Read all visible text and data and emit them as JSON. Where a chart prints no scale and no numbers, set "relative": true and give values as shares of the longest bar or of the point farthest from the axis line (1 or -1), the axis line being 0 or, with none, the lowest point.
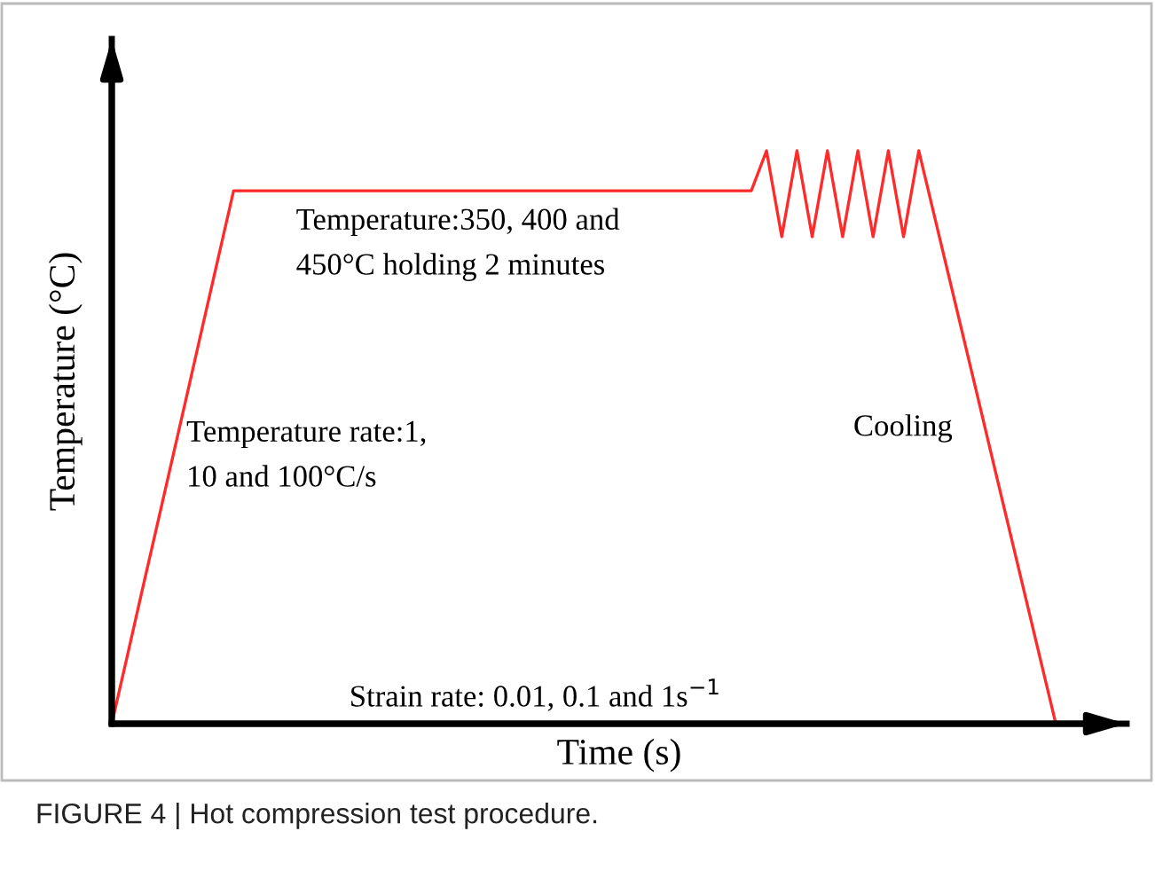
{
  "chart_data": {
    "type": "line",
    "relative": true,
    "xlabel": "Time (s)",
    "ylabel": "Temperature (°C)",
    "categories": [
      null,
      null,
      null,
      null,
      null,
      null,
      null,
      null,
      null,
      null,
      null,
      null,
      null,
      null,
      null,
      null,
      null,
      null,
      null,
      null,
      null,
      null,
      null,
      null,
      null,
      null,
      null,
      null,
      null,
      null,
      null,
      null,
      null,
      null,
      null,
      null,
      null,
      null,
      null,
      null,
      null,
      null,
      null,
      null,
      null,
      null,
      null,
      null,
      null,
      null,
      null,
      null,
      null,
      null,
      null,
      null,
      null,
      null,
      null,
      null,
      null,
      null,
      null
    ],
    "tick_labels": false,
    "marker": "none",
    "line_style": "solid",
    "series": [
      {
        "color": "#ff2a2a",
        "values": [
          0,
          0.116,
          0.233,
          0.349,
          0.465,
          0.581,
          0.698,
          0.814,
          0.93,
          0.93,
          0.93,
          0.93,
          0.93,
          0.93,
          0.93,
          0.93,
          0.93,
          0.93,
          0.93,
          0.93,
          0.93,
          0.93,
          0.93,
          0.93,
          0.93,
          0.93,
          0.93,
          0.93,
          0.93,
          0.93,
          0.93,
          0.93,
          0.93,
          0.93,
          0.93,
          0.93,
          0.93,
          0.93,
          0.93,
          0.93,
          0.93,
          0.93,
          0.93,
          1,
          0.85,
          1,
          0.85,
          1,
          0.85,
          1,
          0.85,
          1,
          0.85,
          1,
          0.889,
          0.778,
          0.667,
          0.556,
          0.444,
          0.333,
          0.222,
          0.111,
          0
        ]
      }
    ],
    "annotations": [
      "Temperature:350, 400 and\n450°C holding 2 minutes",
      "Temperature rate:1,\n10 and 100°C/s",
      "Cooling",
      "Strain rate: 0.01, 0.1 and 1s$^{−1}$",
      "FIGURE 4 | Hot compression test procedure."
    ]
  }
}
